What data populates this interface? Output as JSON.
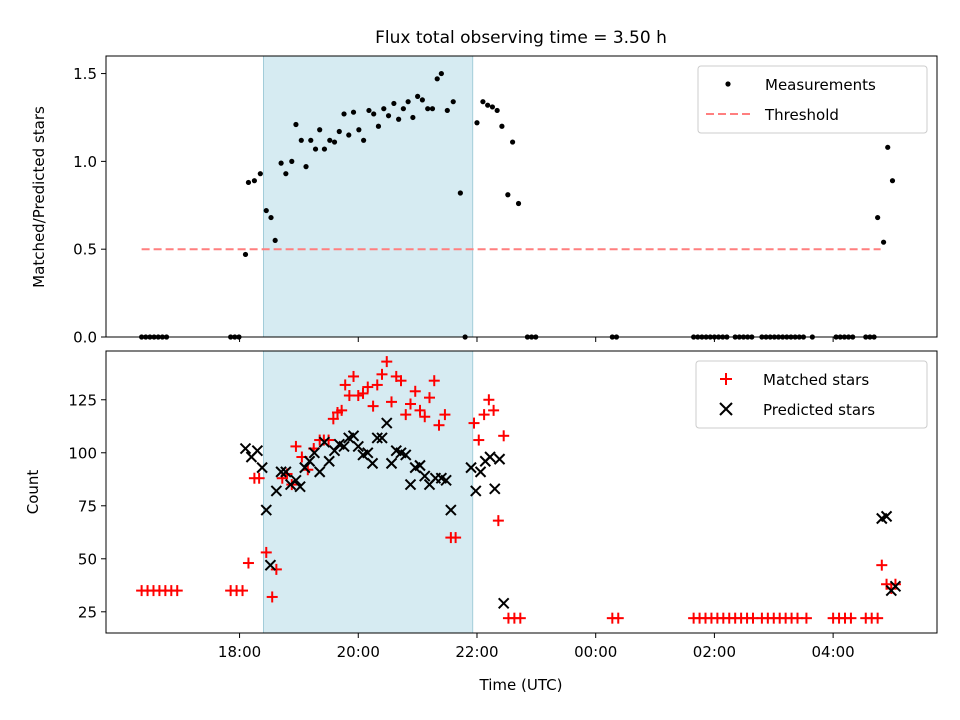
{
  "chart_data": [
    {
      "type": "scatter",
      "title": "Flux total observing time = 3.50 h",
      "ylabel": "Matched/Predicted stars",
      "xlabel": "",
      "x_unit": "hours since 00:00 UTC of start day",
      "xlim": [
        15.75,
        29.75
      ],
      "ylim": [
        0,
        1.6
      ],
      "yticks": [
        "0.0",
        "0.5",
        "1.0",
        "1.5"
      ],
      "yticks_values": [
        0,
        0.5,
        1.0,
        1.5
      ],
      "shaded_interval": [
        18.4,
        21.93
      ],
      "legend_position": "upper right",
      "threshold": {
        "name": "Threshold",
        "value": 0.5,
        "x_range": [
          16.35,
          28.8
        ],
        "color": "#ff7f7f"
      },
      "series": [
        {
          "name": "Measurements",
          "marker": "dot",
          "color": "#000000",
          "points": [
            [
              16.35,
              0
            ],
            [
              16.42,
              0
            ],
            [
              16.49,
              0
            ],
            [
              16.56,
              0
            ],
            [
              16.63,
              0
            ],
            [
              16.7,
              0
            ],
            [
              16.77,
              0
            ],
            [
              17.85,
              0
            ],
            [
              17.92,
              0
            ],
            [
              17.99,
              0
            ],
            [
              18.1,
              0.47
            ],
            [
              18.15,
              0.88
            ],
            [
              18.25,
              0.89
            ],
            [
              18.35,
              0.93
            ],
            [
              18.45,
              0.72
            ],
            [
              18.53,
              0.68
            ],
            [
              18.6,
              0.55
            ],
            [
              18.7,
              0.99
            ],
            [
              18.78,
              0.93
            ],
            [
              18.88,
              1.0
            ],
            [
              18.95,
              1.21
            ],
            [
              19.04,
              1.12
            ],
            [
              19.12,
              0.97
            ],
            [
              19.2,
              1.12
            ],
            [
              19.28,
              1.07
            ],
            [
              19.35,
              1.18
            ],
            [
              19.43,
              1.07
            ],
            [
              19.52,
              1.12
            ],
            [
              19.6,
              1.11
            ],
            [
              19.68,
              1.17
            ],
            [
              19.76,
              1.27
            ],
            [
              19.84,
              1.15
            ],
            [
              19.92,
              1.28
            ],
            [
              20.01,
              1.18
            ],
            [
              20.09,
              1.12
            ],
            [
              20.18,
              1.29
            ],
            [
              20.26,
              1.27
            ],
            [
              20.34,
              1.2
            ],
            [
              20.43,
              1.3
            ],
            [
              20.51,
              1.26
            ],
            [
              20.6,
              1.33
            ],
            [
              20.68,
              1.24
            ],
            [
              20.76,
              1.3
            ],
            [
              20.84,
              1.34
            ],
            [
              20.92,
              1.25
            ],
            [
              21.0,
              1.37
            ],
            [
              21.08,
              1.35
            ],
            [
              21.17,
              1.3
            ],
            [
              21.25,
              1.3
            ],
            [
              21.33,
              1.47
            ],
            [
              21.4,
              1.5
            ],
            [
              21.5,
              1.29
            ],
            [
              21.6,
              1.34
            ],
            [
              21.72,
              0.82
            ],
            [
              21.8,
              0
            ],
            [
              22.0,
              1.22
            ],
            [
              22.1,
              1.34
            ],
            [
              22.18,
              1.32
            ],
            [
              22.26,
              1.31
            ],
            [
              22.34,
              1.29
            ],
            [
              22.42,
              1.2
            ],
            [
              22.52,
              0.81
            ],
            [
              22.6,
              1.11
            ],
            [
              22.7,
              0.76
            ],
            [
              22.85,
              0
            ],
            [
              22.92,
              0
            ],
            [
              22.99,
              0
            ],
            [
              24.28,
              0
            ],
            [
              24.35,
              0
            ],
            [
              25.65,
              0
            ],
            [
              25.72,
              0
            ],
            [
              25.79,
              0
            ],
            [
              25.86,
              0
            ],
            [
              25.93,
              0
            ],
            [
              26.0,
              0
            ],
            [
              26.07,
              0
            ],
            [
              26.14,
              0
            ],
            [
              26.21,
              0
            ],
            [
              26.35,
              0
            ],
            [
              26.42,
              0
            ],
            [
              26.49,
              0
            ],
            [
              26.56,
              0
            ],
            [
              26.63,
              0
            ],
            [
              26.8,
              0
            ],
            [
              26.87,
              0
            ],
            [
              26.94,
              0
            ],
            [
              27.01,
              0
            ],
            [
              27.08,
              0
            ],
            [
              27.15,
              0
            ],
            [
              27.22,
              0
            ],
            [
              27.29,
              0
            ],
            [
              27.36,
              0
            ],
            [
              27.43,
              0
            ],
            [
              27.5,
              0
            ],
            [
              27.65,
              0
            ],
            [
              28.05,
              0
            ],
            [
              28.12,
              0
            ],
            [
              28.19,
              0
            ],
            [
              28.26,
              0
            ],
            [
              28.33,
              0
            ],
            [
              28.55,
              0
            ],
            [
              28.62,
              0
            ],
            [
              28.69,
              0
            ],
            [
              28.75,
              0.68
            ],
            [
              28.85,
              0.54
            ],
            [
              28.92,
              1.08
            ],
            [
              29.0,
              0.89
            ]
          ]
        }
      ]
    },
    {
      "type": "scatter",
      "title": "",
      "ylabel": "Count",
      "xlabel": "Time (UTC)",
      "xlim": [
        15.75,
        29.75
      ],
      "ylim": [
        15,
        148
      ],
      "xticks_values": [
        18,
        20,
        22,
        24,
        26,
        28
      ],
      "xticks": [
        "18:00",
        "20:00",
        "22:00",
        "00:00",
        "02:00",
        "04:00"
      ],
      "yticks_values": [
        25,
        50,
        75,
        100,
        125
      ],
      "yticks": [
        "25",
        "50",
        "75",
        "100",
        "125"
      ],
      "shaded_interval": [
        18.4,
        21.93
      ],
      "legend_position": "upper right",
      "series": [
        {
          "name": "Matched stars",
          "marker": "plus",
          "color": "#ff0000",
          "points": [
            [
              16.35,
              35
            ],
            [
              16.45,
              35
            ],
            [
              16.55,
              35
            ],
            [
              16.65,
              35
            ],
            [
              16.75,
              35
            ],
            [
              16.85,
              35
            ],
            [
              16.95,
              35
            ],
            [
              17.85,
              35
            ],
            [
              17.95,
              35
            ],
            [
              18.05,
              35
            ],
            [
              18.15,
              48
            ],
            [
              18.25,
              88
            ],
            [
              18.33,
              88
            ],
            [
              18.45,
              53
            ],
            [
              18.55,
              32
            ],
            [
              18.62,
              45
            ],
            [
              18.72,
              88
            ],
            [
              18.8,
              90
            ],
            [
              18.88,
              85
            ],
            [
              18.95,
              103
            ],
            [
              19.05,
              98
            ],
            [
              19.15,
              92
            ],
            [
              19.25,
              102
            ],
            [
              19.35,
              106
            ],
            [
              19.42,
              106
            ],
            [
              19.5,
              106
            ],
            [
              19.58,
              116
            ],
            [
              19.65,
              119
            ],
            [
              19.72,
              120
            ],
            [
              19.78,
              132
            ],
            [
              19.85,
              127
            ],
            [
              19.92,
              136
            ],
            [
              20.0,
              127
            ],
            [
              20.08,
              128
            ],
            [
              20.16,
              131
            ],
            [
              20.25,
              122
            ],
            [
              20.32,
              132
            ],
            [
              20.4,
              137
            ],
            [
              20.48,
              143
            ],
            [
              20.56,
              124
            ],
            [
              20.64,
              136
            ],
            [
              20.72,
              134
            ],
            [
              20.8,
              118
            ],
            [
              20.88,
              123
            ],
            [
              20.96,
              129
            ],
            [
              21.04,
              120
            ],
            [
              21.12,
              117
            ],
            [
              21.2,
              126
            ],
            [
              21.28,
              134
            ],
            [
              21.36,
              113
            ],
            [
              21.46,
              118
            ],
            [
              21.56,
              60
            ],
            [
              21.64,
              60
            ],
            [
              21.95,
              114
            ],
            [
              22.03,
              106
            ],
            [
              22.12,
              118
            ],
            [
              22.2,
              125
            ],
            [
              22.28,
              120
            ],
            [
              22.36,
              68
            ],
            [
              22.45,
              108
            ],
            [
              22.53,
              22
            ],
            [
              22.63,
              22
            ],
            [
              22.73,
              22
            ],
            [
              24.28,
              22
            ],
            [
              24.38,
              22
            ],
            [
              25.65,
              22
            ],
            [
              25.75,
              22
            ],
            [
              25.85,
              22
            ],
            [
              25.95,
              22
            ],
            [
              26.05,
              22
            ],
            [
              26.15,
              22
            ],
            [
              26.25,
              22
            ],
            [
              26.35,
              22
            ],
            [
              26.45,
              22
            ],
            [
              26.55,
              22
            ],
            [
              26.65,
              22
            ],
            [
              26.8,
              22
            ],
            [
              26.9,
              22
            ],
            [
              27.0,
              22
            ],
            [
              27.1,
              22
            ],
            [
              27.2,
              22
            ],
            [
              27.3,
              22
            ],
            [
              27.4,
              22
            ],
            [
              27.55,
              22
            ],
            [
              28.0,
              22
            ],
            [
              28.1,
              22
            ],
            [
              28.2,
              22
            ],
            [
              28.3,
              22
            ],
            [
              28.55,
              22
            ],
            [
              28.65,
              22
            ],
            [
              28.75,
              22
            ],
            [
              28.82,
              47
            ],
            [
              28.9,
              38
            ],
            [
              28.98,
              36
            ],
            [
              29.05,
              38
            ]
          ]
        },
        {
          "name": "Predicted stars",
          "marker": "x",
          "color": "#000000",
          "points": [
            [
              18.1,
              102
            ],
            [
              18.2,
              98
            ],
            [
              18.3,
              101
            ],
            [
              18.38,
              93
            ],
            [
              18.45,
              73
            ],
            [
              18.52,
              47
            ],
            [
              18.62,
              82
            ],
            [
              18.7,
              91
            ],
            [
              18.78,
              91
            ],
            [
              18.86,
              85
            ],
            [
              18.95,
              87
            ],
            [
              19.02,
              84
            ],
            [
              19.1,
              93
            ],
            [
              19.18,
              96
            ],
            [
              19.26,
              100
            ],
            [
              19.35,
              91
            ],
            [
              19.43,
              105
            ],
            [
              19.51,
              96
            ],
            [
              19.6,
              101
            ],
            [
              19.68,
              104
            ],
            [
              19.76,
              103
            ],
            [
              19.84,
              107
            ],
            [
              19.92,
              108
            ],
            [
              20.0,
              103
            ],
            [
              20.08,
              99
            ],
            [
              20.16,
              100
            ],
            [
              20.24,
              95
            ],
            [
              20.32,
              107
            ],
            [
              20.4,
              107
            ],
            [
              20.48,
              114
            ],
            [
              20.56,
              95
            ],
            [
              20.64,
              101
            ],
            [
              20.72,
              100
            ],
            [
              20.8,
              99
            ],
            [
              20.88,
              85
            ],
            [
              20.96,
              93
            ],
            [
              21.04,
              94
            ],
            [
              21.12,
              89
            ],
            [
              21.2,
              85
            ],
            [
              21.3,
              88
            ],
            [
              21.4,
              88
            ],
            [
              21.48,
              87
            ],
            [
              21.56,
              73
            ],
            [
              21.9,
              93
            ],
            [
              21.98,
              82
            ],
            [
              22.06,
              91
            ],
            [
              22.14,
              96
            ],
            [
              22.22,
              98
            ],
            [
              22.3,
              83
            ],
            [
              22.38,
              97
            ],
            [
              22.45,
              29
            ],
            [
              28.82,
              69
            ],
            [
              28.9,
              70
            ],
            [
              28.98,
              35
            ],
            [
              29.05,
              37
            ]
          ]
        }
      ]
    }
  ]
}
